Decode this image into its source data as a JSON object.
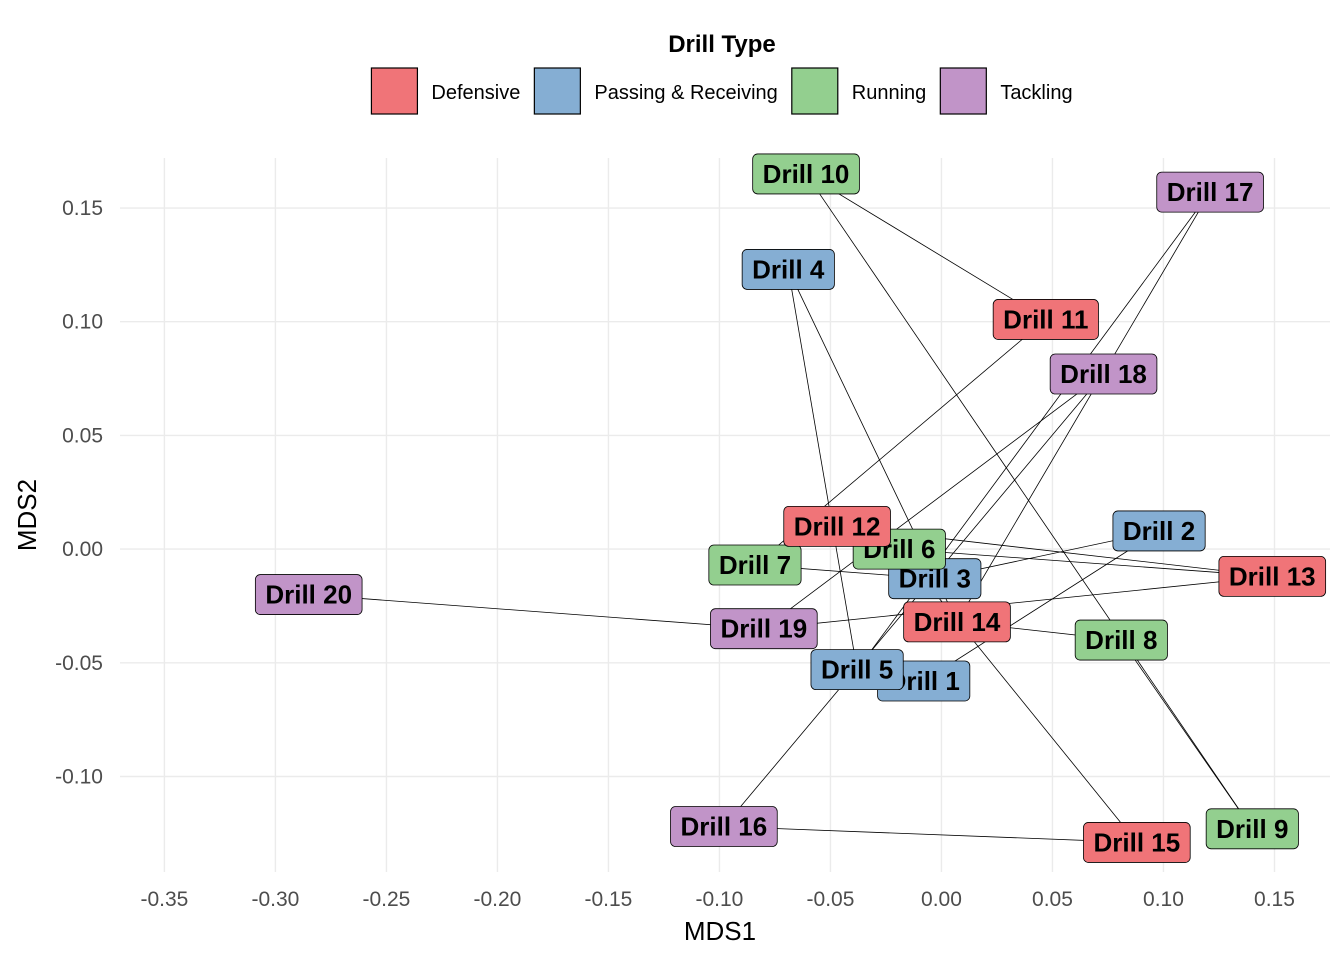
{
  "chart_data": {
    "type": "scatter",
    "title": "",
    "xlabel": "MDS1",
    "ylabel": "MDS2",
    "xlim": [
      -0.37,
      0.175
    ],
    "ylim": [
      -0.142,
      0.172
    ],
    "xticks": [
      -0.35,
      -0.3,
      -0.25,
      -0.2,
      -0.15,
      -0.1,
      -0.05,
      0.0,
      0.05,
      0.1,
      0.15
    ],
    "xtick_labels": [
      "-0.35",
      "-0.30",
      "-0.25",
      "-0.20",
      "-0.15",
      "-0.10",
      "-0.05",
      "0.00",
      "0.05",
      "0.10",
      "0.15"
    ],
    "yticks": [
      -0.1,
      -0.05,
      0.0,
      0.05,
      0.1,
      0.15
    ],
    "ytick_labels": [
      "-0.10",
      "-0.05",
      "0.00",
      "0.05",
      "0.10",
      "0.15"
    ],
    "grid": true,
    "legend": {
      "title": "Drill Type",
      "position": "top",
      "entries": [
        {
          "name": "Defensive",
          "color": "#F07478"
        },
        {
          "name": "Passing & Receiving",
          "color": "#85AED3"
        },
        {
          "name": "Running",
          "color": "#93CF8F"
        },
        {
          "name": "Tackling",
          "color": "#C194C8"
        }
      ]
    },
    "points": [
      {
        "label": "Drill 1",
        "type": "Passing & Receiving",
        "x": -0.008,
        "y": -0.058
      },
      {
        "label": "Drill 2",
        "type": "Passing & Receiving",
        "x": 0.098,
        "y": 0.008
      },
      {
        "label": "Drill 3",
        "type": "Passing & Receiving",
        "x": -0.003,
        "y": -0.013
      },
      {
        "label": "Drill 4",
        "type": "Passing & Receiving",
        "x": -0.069,
        "y": 0.123
      },
      {
        "label": "Drill 5",
        "type": "Passing & Receiving",
        "x": -0.038,
        "y": -0.053
      },
      {
        "label": "Drill 6",
        "type": "Running",
        "x": -0.019,
        "y": 0.0
      },
      {
        "label": "Drill 7",
        "type": "Running",
        "x": -0.084,
        "y": -0.007
      },
      {
        "label": "Drill 8",
        "type": "Running",
        "x": 0.081,
        "y": -0.04
      },
      {
        "label": "Drill 9",
        "type": "Running",
        "x": 0.14,
        "y": -0.123
      },
      {
        "label": "Drill 10",
        "type": "Running",
        "x": -0.061,
        "y": 0.165
      },
      {
        "label": "Drill 11",
        "type": "Defensive",
        "x": 0.047,
        "y": 0.101
      },
      {
        "label": "Drill 12",
        "type": "Defensive",
        "x": -0.047,
        "y": 0.01
      },
      {
        "label": "Drill 13",
        "type": "Defensive",
        "x": 0.149,
        "y": -0.012
      },
      {
        "label": "Drill 14",
        "type": "Defensive",
        "x": 0.007,
        "y": -0.032
      },
      {
        "label": "Drill 15",
        "type": "Defensive",
        "x": 0.088,
        "y": -0.129
      },
      {
        "label": "Drill 16",
        "type": "Tackling",
        "x": -0.098,
        "y": -0.122
      },
      {
        "label": "Drill 17",
        "type": "Tackling",
        "x": 0.121,
        "y": 0.157
      },
      {
        "label": "Drill 18",
        "type": "Tackling",
        "x": 0.073,
        "y": 0.077
      },
      {
        "label": "Drill 19",
        "type": "Tackling",
        "x": -0.08,
        "y": -0.035
      },
      {
        "label": "Drill 20",
        "type": "Tackling",
        "x": -0.285,
        "y": -0.02
      }
    ],
    "links": [
      [
        "Drill 1",
        "Drill 2"
      ],
      [
        "Drill 2",
        "Drill 3"
      ],
      [
        "Drill 3",
        "Drill 12"
      ],
      [
        "Drill 3",
        "Drill 7"
      ],
      [
        "Drill 4",
        "Drill 5"
      ],
      [
        "Drill 4",
        "Drill 14"
      ],
      [
        "Drill 5",
        "Drill 17"
      ],
      [
        "Drill 6",
        "Drill 13"
      ],
      [
        "Drill 7",
        "Drill 11"
      ],
      [
        "Drill 8",
        "Drill 14"
      ],
      [
        "Drill 9",
        "Drill 10"
      ],
      [
        "Drill 10",
        "Drill 11"
      ],
      [
        "Drill 12",
        "Drill 13"
      ],
      [
        "Drill 14",
        "Drill 17"
      ],
      [
        "Drill 15",
        "Drill 16"
      ],
      [
        "Drill 15",
        "Drill 6"
      ],
      [
        "Drill 16",
        "Drill 18"
      ],
      [
        "Drill 19",
        "Drill 18"
      ],
      [
        "Drill 19",
        "Drill 13"
      ],
      [
        "Drill 20",
        "Drill 19"
      ],
      [
        "Drill 8",
        "Drill 9"
      ]
    ]
  }
}
